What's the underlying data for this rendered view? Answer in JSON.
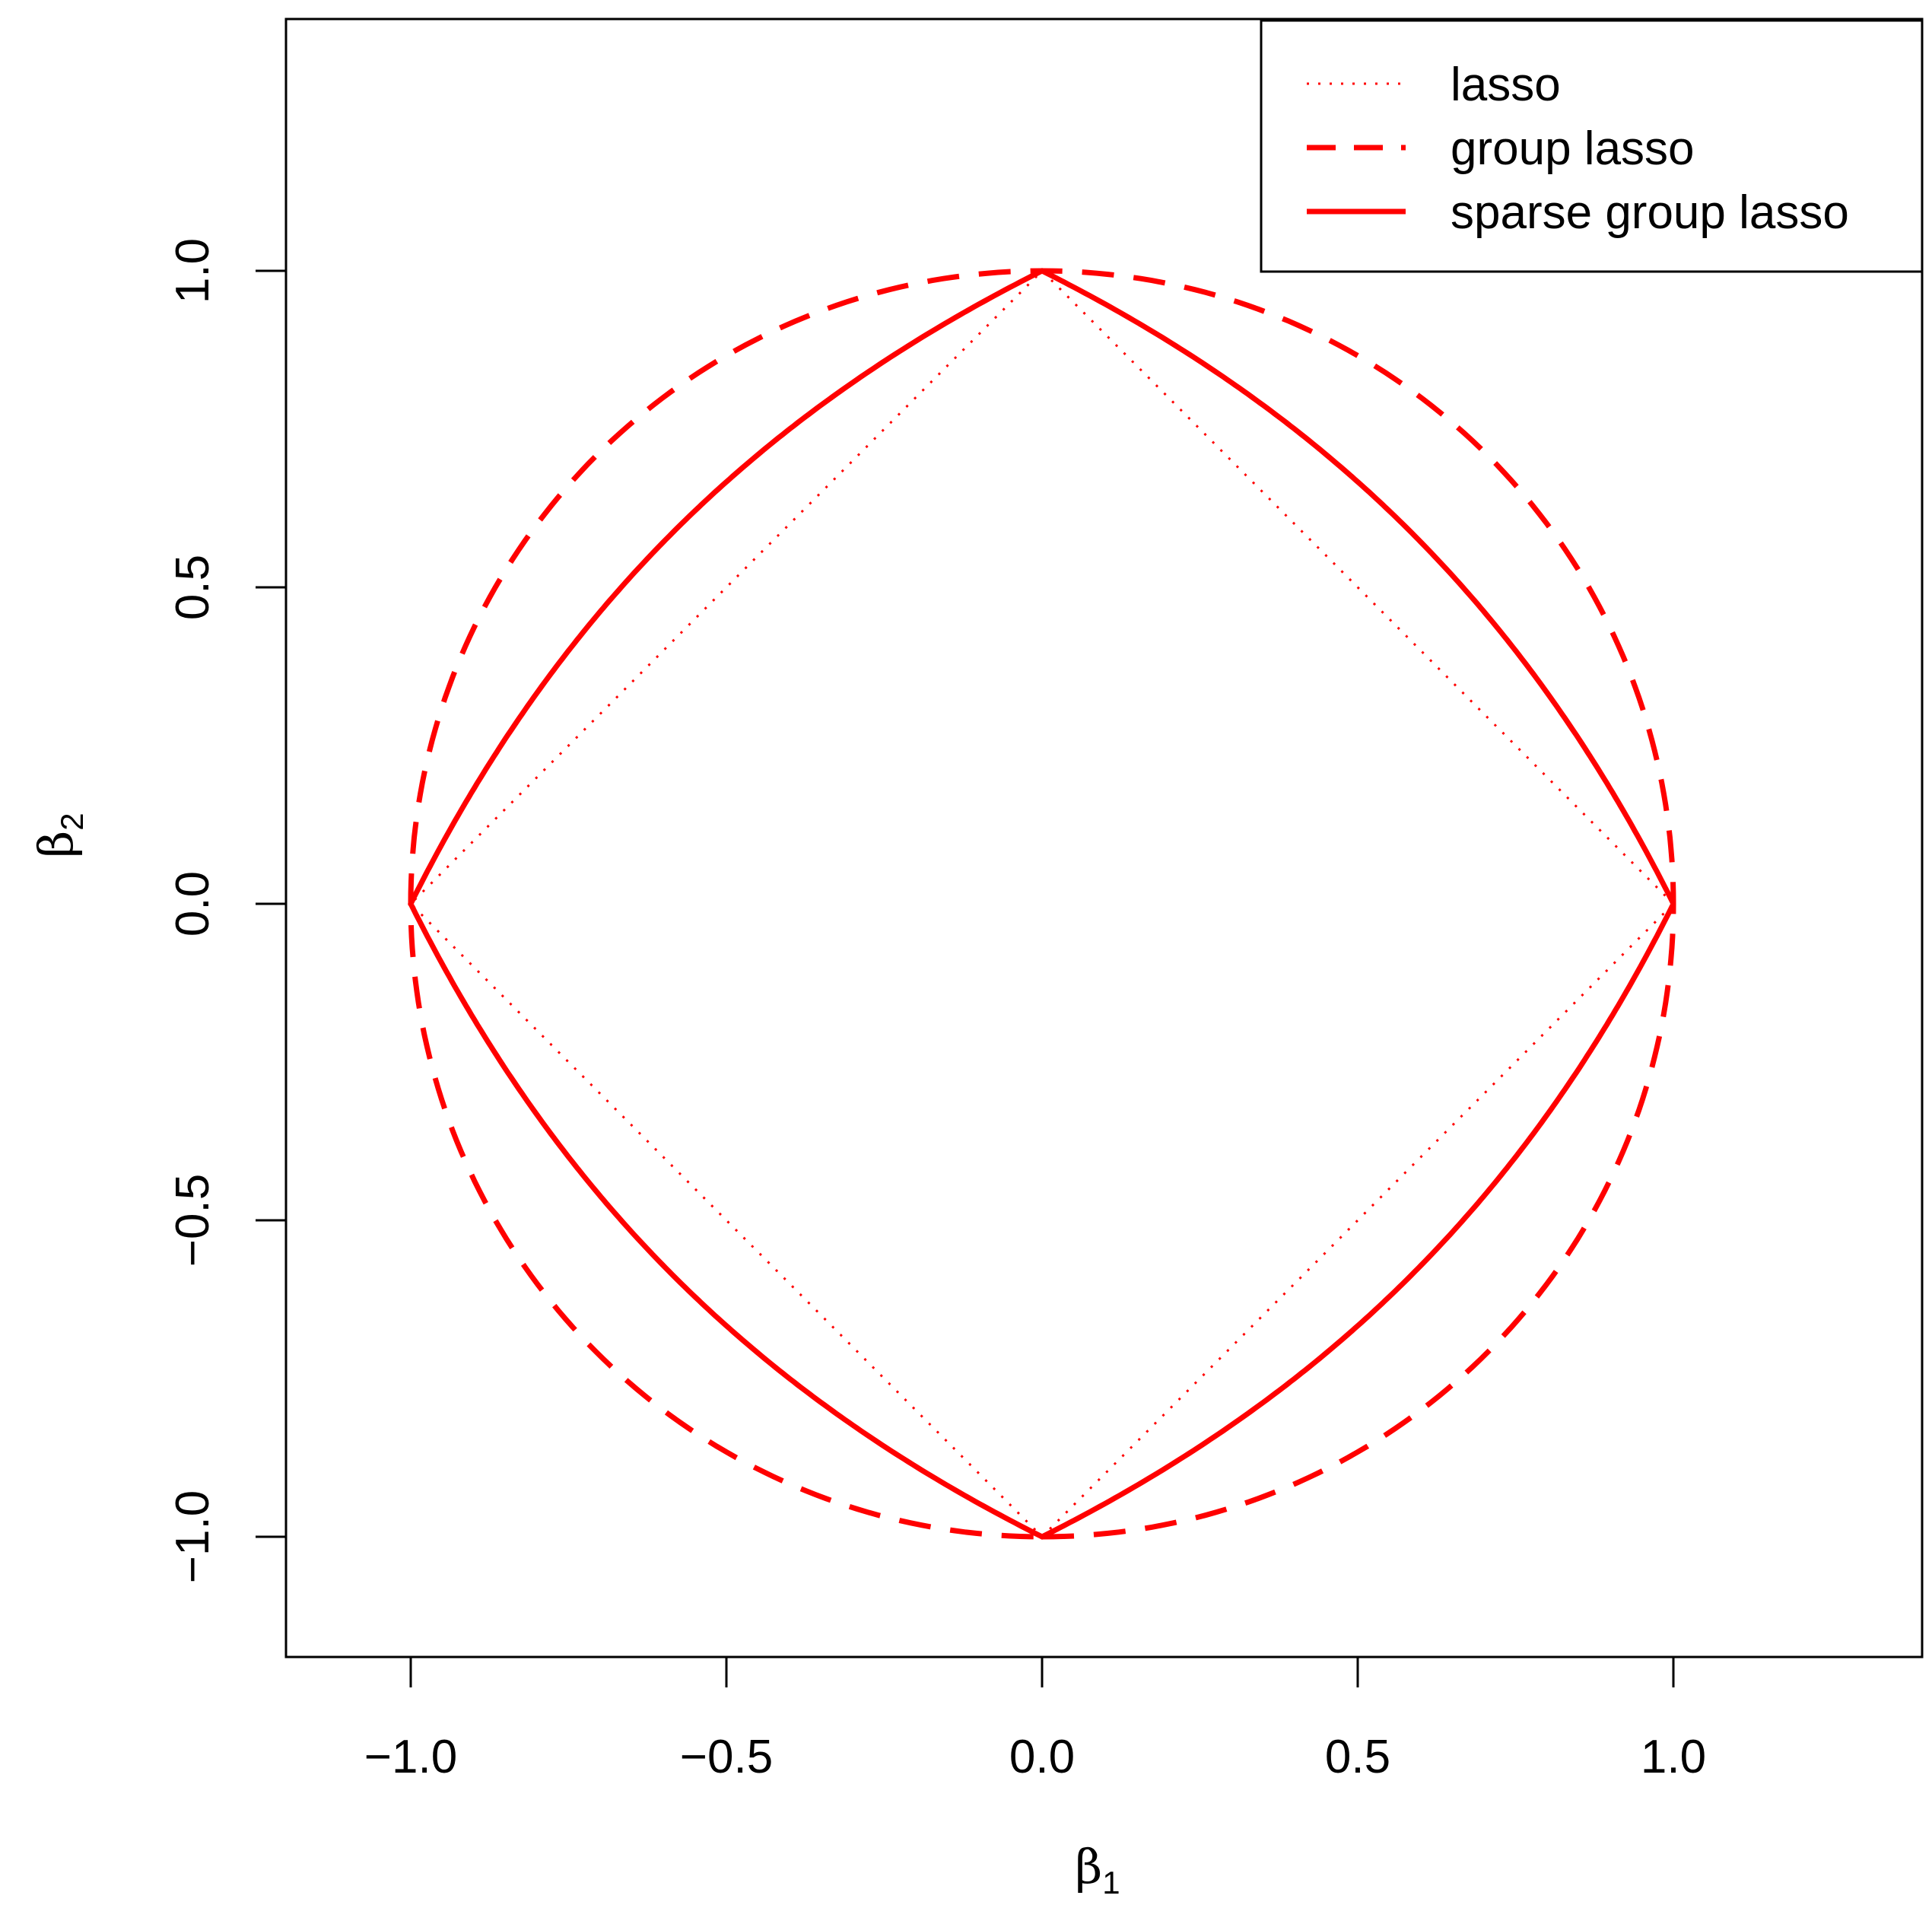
{
  "chart_data": {
    "type": "line",
    "title": "",
    "xlabel": {
      "symbol": "β",
      "subscript": "1"
    },
    "ylabel": {
      "symbol": "β",
      "subscript": "2"
    },
    "xlim": [
      -1.2,
      1.4
    ],
    "ylim": [
      -1.2,
      1.4
    ],
    "xticks": [
      -1.0,
      -0.5,
      0.0,
      0.5,
      1.0
    ],
    "yticks": [
      -1.0,
      -0.5,
      0.0,
      0.5,
      1.0
    ],
    "xtick_labels": [
      "−1.0",
      "−0.5",
      "0.0",
      "0.5",
      "1.0"
    ],
    "ytick_labels": [
      "−1.0",
      "−0.5",
      "0.0",
      "0.5",
      "1.0"
    ],
    "grid": false,
    "legend": {
      "position": "top-right",
      "entries": [
        {
          "label": "lasso",
          "style": "dotted"
        },
        {
          "label": "group lasso",
          "style": "dashed"
        },
        {
          "label": "sparse group lasso",
          "style": "solid"
        }
      ]
    },
    "series": [
      {
        "name": "lasso",
        "style": "dotted",
        "color": "#ff0000",
        "shape": "unit L1 ball",
        "points": [
          [
            1,
            0
          ],
          [
            0,
            1
          ],
          [
            -1,
            0
          ],
          [
            0,
            -1
          ],
          [
            1,
            0
          ]
        ]
      },
      {
        "name": "group lasso",
        "style": "dashed",
        "color": "#ff0000",
        "shape": "unit L2 ball",
        "radius": 1
      },
      {
        "name": "sparse group lasso",
        "style": "solid",
        "color": "#ff0000",
        "shape": "0.5*(|b1|+|b2|) + 0.5*sqrt(b1^2+b2^2) = 1",
        "alpha": 0.5
      }
    ]
  }
}
